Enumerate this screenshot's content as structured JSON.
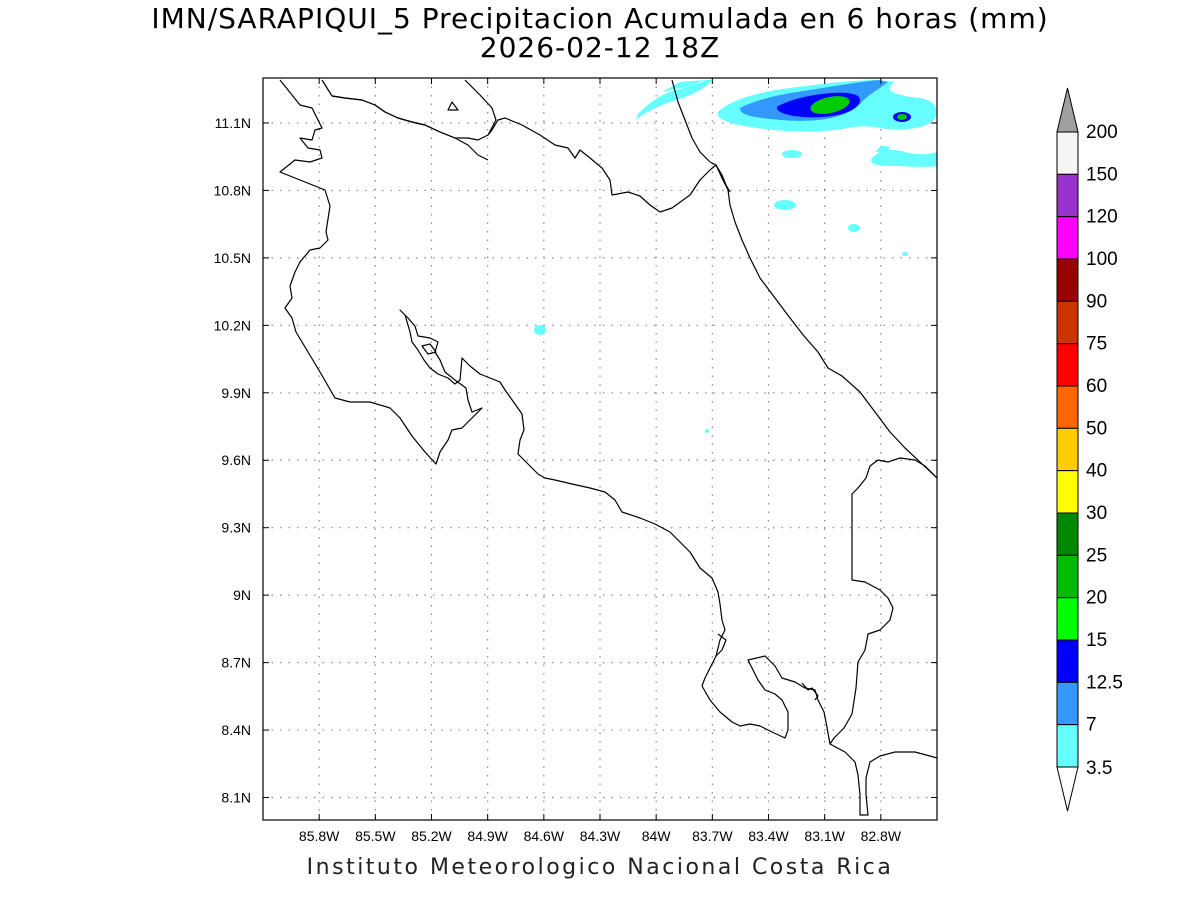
{
  "title": {
    "line1": "IMN/SARAPIQUI_5 Precipitacion Acumulada en 6 horas (mm)",
    "line2": "2026-02-12 18Z"
  },
  "footer": "Instituto Meteorologico Nacional Costa Rica",
  "map": {
    "lon_range": [
      -86.1,
      -82.5
    ],
    "lat_range": [
      8.0,
      11.3
    ],
    "x_ticks": [
      {
        "value": -85.8,
        "label": "85.8W"
      },
      {
        "value": -85.5,
        "label": "85.5W"
      },
      {
        "value": -85.2,
        "label": "85.2W"
      },
      {
        "value": -84.9,
        "label": "84.9W"
      },
      {
        "value": -84.6,
        "label": "84.6W"
      },
      {
        "value": -84.3,
        "label": "84.3W"
      },
      {
        "value": -84.0,
        "label": "84W"
      },
      {
        "value": -83.7,
        "label": "83.7W"
      },
      {
        "value": -83.4,
        "label": "83.4W"
      },
      {
        "value": -83.1,
        "label": "83.1W"
      },
      {
        "value": -82.8,
        "label": "82.8W"
      }
    ],
    "y_ticks": [
      {
        "value": 11.1,
        "label": "11.1N"
      },
      {
        "value": 10.8,
        "label": "10.8N"
      },
      {
        "value": 10.5,
        "label": "10.5N"
      },
      {
        "value": 10.2,
        "label": "10.2N"
      },
      {
        "value": 9.9,
        "label": "9.9N"
      },
      {
        "value": 9.6,
        "label": "9.6N"
      },
      {
        "value": 9.3,
        "label": "9.3N"
      },
      {
        "value": 9.0,
        "label": "9N"
      },
      {
        "value": 8.7,
        "label": "8.7N"
      },
      {
        "value": 8.4,
        "label": "8.4N"
      },
      {
        "value": 8.1,
        "label": "8.1N"
      }
    ],
    "grid": "dotted",
    "coastline_color": "#000000"
  },
  "legend": {
    "placement": "right",
    "top_arrow_color": "#a0a0a0",
    "bottom_arrow_color": "#ffffff",
    "bins": [
      {
        "label": "200",
        "color": "#f5f5f5"
      },
      {
        "label": "150",
        "color": "#9932cc"
      },
      {
        "label": "120",
        "color": "#ff00ff"
      },
      {
        "label": "100",
        "color": "#990000"
      },
      {
        "label": "90",
        "color": "#cc3300"
      },
      {
        "label": "75",
        "color": "#ff0000"
      },
      {
        "label": "60",
        "color": "#ff6600"
      },
      {
        "label": "50",
        "color": "#ffcc00"
      },
      {
        "label": "40",
        "color": "#ffff00"
      },
      {
        "label": "30",
        "color": "#008800"
      },
      {
        "label": "25",
        "color": "#00bb00"
      },
      {
        "label": "20",
        "color": "#00ff00"
      },
      {
        "label": "15",
        "color": "#0000ff"
      },
      {
        "label": "12.5",
        "color": "#3399ff"
      },
      {
        "label": "7",
        "color": "#66ffff"
      }
    ],
    "bottom_label": "3.5"
  },
  "precip_colors": {
    "light_cyan": "#66ffff",
    "sky_blue": "#3399ff",
    "blue": "#0000ff",
    "green": "#00cc00"
  }
}
